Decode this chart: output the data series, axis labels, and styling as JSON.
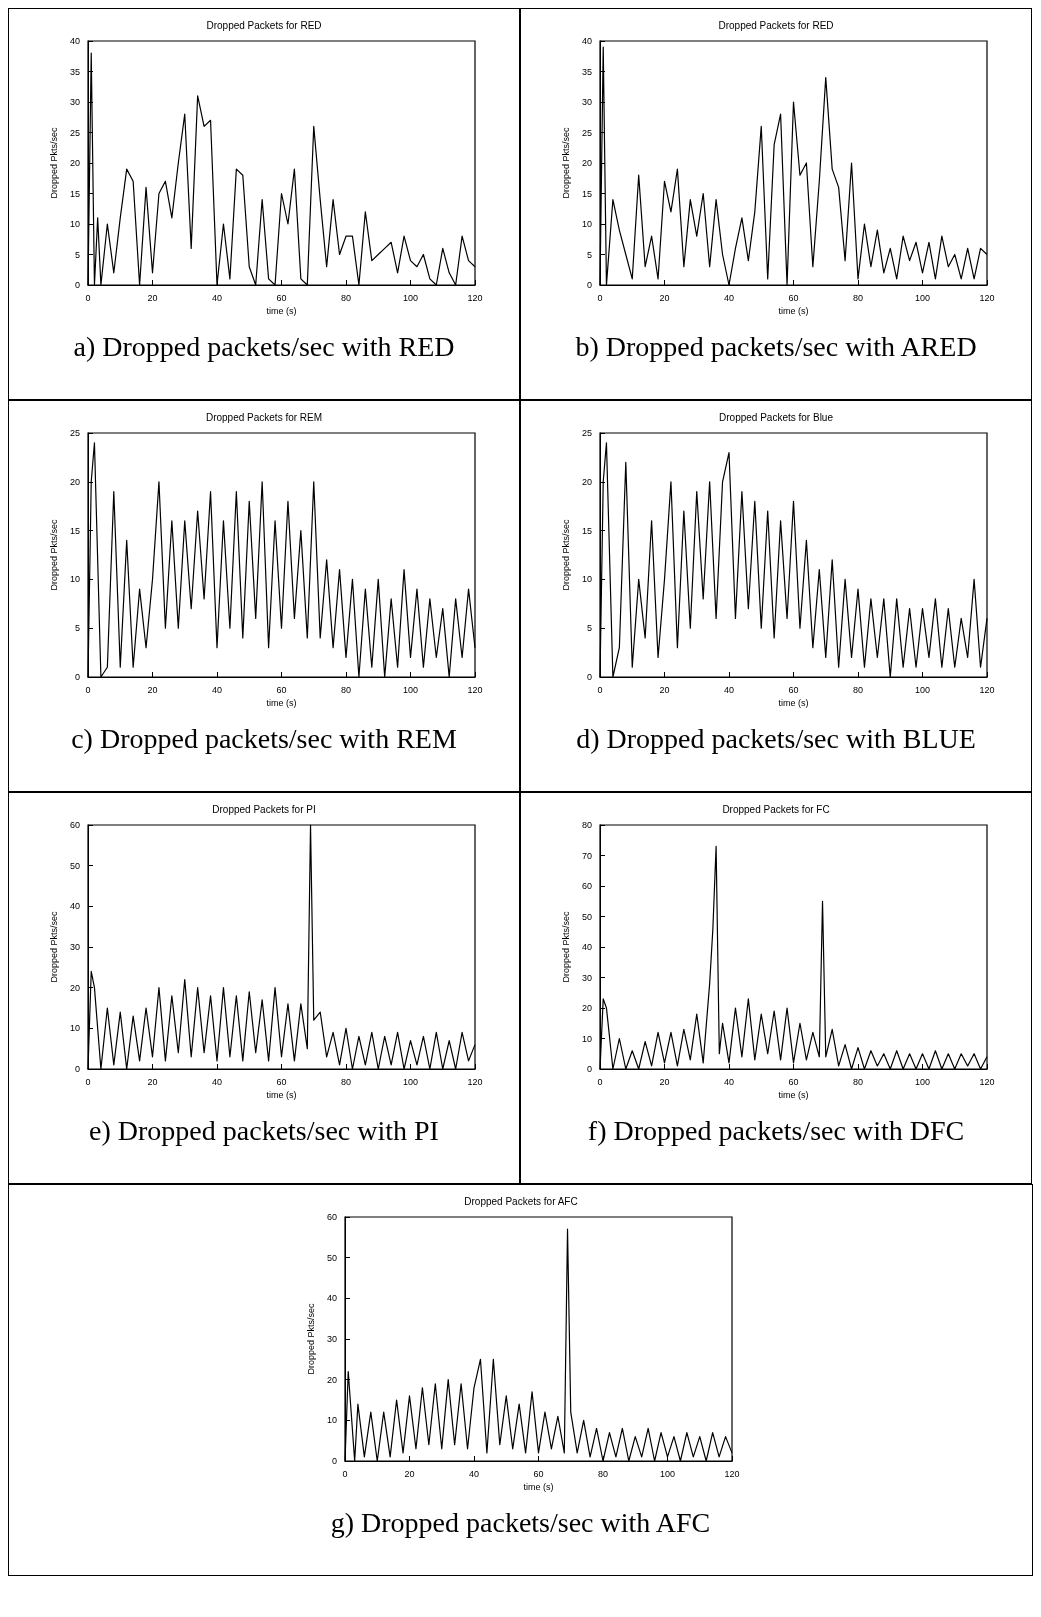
{
  "chart_data": [
    {
      "type": "line",
      "title": "Dropped Packets for RED",
      "xlabel": "time (s)",
      "ylabel": "Dropped Pkts/sec",
      "annotations": [
        "a) Dropped packets/sec with RED"
      ],
      "color": "#000000",
      "xlim": [
        0,
        120
      ],
      "xticks": [
        0,
        20,
        40,
        60,
        80,
        100,
        120
      ],
      "ylim": [
        0,
        40
      ],
      "yticks": [
        0,
        5,
        10,
        15,
        20,
        25,
        30,
        35,
        40
      ],
      "x": [
        0,
        1,
        2,
        3,
        4,
        6,
        8,
        10,
        12,
        14,
        16,
        18,
        20,
        22,
        24,
        26,
        28,
        30,
        32,
        34,
        36,
        38,
        40,
        42,
        44,
        46,
        48,
        50,
        52,
        54,
        56,
        58,
        60,
        62,
        64,
        66,
        68,
        70,
        72,
        74,
        76,
        78,
        80,
        82,
        84,
        86,
        88,
        90,
        92,
        94,
        96,
        98,
        100,
        102,
        104,
        106,
        108,
        110,
        112,
        114,
        116,
        118,
        120
      ],
      "values": [
        0,
        38,
        0,
        11,
        0,
        10,
        2,
        11,
        19,
        17,
        0,
        16,
        2,
        15,
        17,
        11,
        20,
        28,
        6,
        31,
        26,
        27,
        0,
        10,
        1,
        19,
        18,
        3,
        0,
        14,
        1,
        0,
        15,
        10,
        19,
        1,
        0,
        26,
        14,
        3,
        14,
        5,
        8,
        8,
        0,
        12,
        4,
        5,
        6,
        7,
        2,
        8,
        4,
        3,
        5,
        1,
        0,
        6,
        2,
        0,
        8,
        4,
        3
      ]
    },
    {
      "type": "line",
      "title": "Dropped Packets for RED",
      "xlabel": "time (s)",
      "ylabel": "Dropped Pkts/sec",
      "annotations": [
        "b) Dropped packets/sec with ARED"
      ],
      "color": "#000000",
      "xlim": [
        0,
        120
      ],
      "xticks": [
        0,
        20,
        40,
        60,
        80,
        100,
        120
      ],
      "ylim": [
        0,
        40
      ],
      "yticks": [
        0,
        5,
        10,
        15,
        20,
        25,
        30,
        35,
        40
      ],
      "x": [
        0,
        1,
        2,
        4,
        6,
        8,
        10,
        12,
        14,
        16,
        18,
        20,
        22,
        24,
        26,
        28,
        30,
        32,
        34,
        36,
        38,
        40,
        42,
        44,
        46,
        48,
        50,
        52,
        54,
        56,
        58,
        60,
        62,
        64,
        66,
        68,
        70,
        72,
        74,
        76,
        78,
        80,
        82,
        84,
        86,
        88,
        90,
        92,
        94,
        96,
        98,
        100,
        102,
        104,
        106,
        108,
        110,
        112,
        114,
        116,
        118,
        120
      ],
      "values": [
        0,
        39,
        0,
        14,
        9,
        5,
        1,
        18,
        3,
        8,
        1,
        17,
        12,
        19,
        3,
        14,
        8,
        15,
        3,
        14,
        5,
        0,
        6,
        11,
        4,
        12,
        26,
        1,
        23,
        28,
        0,
        30,
        18,
        20,
        3,
        17,
        34,
        19,
        16,
        4,
        20,
        1,
        10,
        3,
        9,
        2,
        6,
        1,
        8,
        4,
        7,
        2,
        7,
        1,
        8,
        3,
        5,
        1,
        6,
        1,
        6,
        5
      ]
    },
    {
      "type": "line",
      "title": "Dropped Packets for REM",
      "xlabel": "time (s)",
      "ylabel": "Dropped Pkts/sec",
      "annotations": [
        "c) Dropped packets/sec with REM"
      ],
      "color": "#000000",
      "xlim": [
        0,
        120
      ],
      "xticks": [
        0,
        20,
        40,
        60,
        80,
        100,
        120
      ],
      "ylim": [
        0,
        25
      ],
      "yticks": [
        0,
        5,
        10,
        15,
        20,
        25
      ],
      "x": [
        0,
        1,
        2,
        4,
        6,
        8,
        10,
        12,
        14,
        16,
        18,
        20,
        22,
        24,
        26,
        28,
        30,
        32,
        34,
        36,
        38,
        40,
        42,
        44,
        46,
        48,
        50,
        52,
        54,
        56,
        58,
        60,
        62,
        64,
        66,
        68,
        70,
        72,
        74,
        76,
        78,
        80,
        82,
        84,
        86,
        88,
        90,
        92,
        94,
        96,
        98,
        100,
        102,
        104,
        106,
        108,
        110,
        112,
        114,
        116,
        118,
        120
      ],
      "values": [
        0,
        20,
        24,
        0,
        1,
        19,
        1,
        14,
        1,
        9,
        3,
        10,
        20,
        5,
        16,
        5,
        16,
        7,
        17,
        8,
        19,
        3,
        16,
        5,
        19,
        4,
        18,
        6,
        20,
        3,
        16,
        5,
        18,
        6,
        15,
        4,
        20,
        4,
        12,
        3,
        11,
        2,
        10,
        0,
        9,
        1,
        10,
        0,
        8,
        1,
        11,
        2,
        9,
        1,
        8,
        2,
        7,
        0,
        8,
        2,
        9,
        3
      ]
    },
    {
      "type": "line",
      "title": "Dropped Packets for Blue",
      "xlabel": "time (s)",
      "ylabel": "Dropped Pkts/sec",
      "annotations": [
        "d) Dropped packets/sec with BLUE"
      ],
      "color": "#000000",
      "xlim": [
        0,
        120
      ],
      "xticks": [
        0,
        20,
        40,
        60,
        80,
        100,
        120
      ],
      "ylim": [
        0,
        25
      ],
      "yticks": [
        0,
        5,
        10,
        15,
        20,
        25
      ],
      "x": [
        0,
        1,
        2,
        4,
        6,
        8,
        10,
        12,
        14,
        16,
        18,
        20,
        22,
        24,
        26,
        28,
        30,
        32,
        34,
        36,
        38,
        40,
        42,
        44,
        46,
        48,
        50,
        52,
        54,
        56,
        58,
        60,
        62,
        64,
        66,
        68,
        70,
        72,
        74,
        76,
        78,
        80,
        82,
        84,
        86,
        88,
        90,
        92,
        94,
        96,
        98,
        100,
        102,
        104,
        106,
        108,
        110,
        112,
        114,
        116,
        118,
        120
      ],
      "values": [
        0,
        20,
        24,
        0,
        3,
        22,
        1,
        10,
        4,
        16,
        2,
        10,
        20,
        3,
        17,
        5,
        19,
        8,
        20,
        6,
        20,
        23,
        6,
        19,
        7,
        18,
        5,
        17,
        4,
        16,
        6,
        18,
        5,
        14,
        3,
        11,
        2,
        12,
        1,
        10,
        2,
        9,
        1,
        8,
        2,
        8,
        0,
        8,
        1,
        7,
        1,
        7,
        2,
        8,
        1,
        7,
        1,
        6,
        2,
        10,
        1,
        6
      ]
    },
    {
      "type": "line",
      "title": "Dropped Packets for PI",
      "xlabel": "time (s)",
      "ylabel": "Dropped Pkts/sec",
      "annotations": [
        "e) Dropped packets/sec with PI"
      ],
      "color": "#000000",
      "xlim": [
        0,
        120
      ],
      "xticks": [
        0,
        20,
        40,
        60,
        80,
        100,
        120
      ],
      "ylim": [
        0,
        60
      ],
      "yticks": [
        0,
        10,
        20,
        30,
        40,
        50,
        60
      ],
      "x": [
        0,
        1,
        2,
        4,
        6,
        8,
        10,
        12,
        14,
        16,
        18,
        20,
        22,
        24,
        26,
        28,
        30,
        32,
        34,
        36,
        38,
        40,
        42,
        44,
        46,
        48,
        50,
        52,
        54,
        56,
        58,
        60,
        62,
        64,
        66,
        68,
        69,
        70,
        72,
        74,
        76,
        78,
        80,
        82,
        84,
        86,
        88,
        90,
        92,
        94,
        96,
        98,
        100,
        102,
        104,
        106,
        108,
        110,
        112,
        114,
        116,
        118,
        120
      ],
      "values": [
        0,
        24,
        20,
        0,
        15,
        1,
        14,
        0,
        13,
        2,
        15,
        3,
        20,
        2,
        18,
        4,
        22,
        3,
        20,
        4,
        18,
        2,
        20,
        3,
        18,
        2,
        19,
        4,
        17,
        2,
        20,
        3,
        16,
        2,
        16,
        5,
        60,
        12,
        14,
        3,
        9,
        1,
        10,
        0,
        8,
        1,
        9,
        0,
        8,
        1,
        9,
        0,
        7,
        1,
        8,
        0,
        9,
        0,
        7,
        0,
        9,
        2,
        6
      ]
    },
    {
      "type": "line",
      "title": "Dropped Packets for FC",
      "xlabel": "time (s)",
      "ylabel": "Dropped Pkts/sec",
      "annotations": [
        "f) Dropped packets/sec with DFC"
      ],
      "color": "#000000",
      "xlim": [
        0,
        120
      ],
      "xticks": [
        0,
        20,
        40,
        60,
        80,
        100,
        120
      ],
      "ylim": [
        0,
        80
      ],
      "yticks": [
        0,
        10,
        20,
        30,
        40,
        50,
        60,
        70,
        80
      ],
      "x": [
        0,
        1,
        2,
        4,
        6,
        8,
        10,
        12,
        14,
        16,
        18,
        20,
        22,
        24,
        26,
        28,
        30,
        32,
        34,
        35,
        36,
        37,
        38,
        40,
        42,
        44,
        46,
        48,
        50,
        52,
        54,
        56,
        58,
        60,
        62,
        64,
        66,
        68,
        69,
        70,
        72,
        74,
        76,
        78,
        80,
        82,
        84,
        86,
        88,
        90,
        92,
        94,
        96,
        98,
        100,
        102,
        104,
        106,
        108,
        110,
        112,
        114,
        116,
        118,
        120
      ],
      "values": [
        0,
        23,
        20,
        0,
        10,
        0,
        6,
        0,
        9,
        1,
        12,
        2,
        12,
        1,
        13,
        3,
        18,
        2,
        28,
        46,
        73,
        5,
        15,
        2,
        20,
        4,
        23,
        3,
        18,
        5,
        19,
        3,
        20,
        2,
        15,
        3,
        12,
        4,
        55,
        4,
        13,
        1,
        8,
        0,
        7,
        0,
        6,
        1,
        5,
        0,
        6,
        0,
        5,
        0,
        5,
        0,
        6,
        0,
        5,
        0,
        5,
        1,
        5,
        0,
        4
      ]
    },
    {
      "type": "line",
      "title": "Dropped Packets for AFC",
      "xlabel": "time (s)",
      "ylabel": "Dropped Pkts/sec",
      "annotations": [
        "g) Dropped packets/sec with AFC"
      ],
      "color": "#000000",
      "xlim": [
        0,
        120
      ],
      "xticks": [
        0,
        20,
        40,
        60,
        80,
        100,
        120
      ],
      "ylim": [
        0,
        60
      ],
      "yticks": [
        0,
        10,
        20,
        30,
        40,
        50,
        60
      ],
      "x": [
        0,
        1,
        3,
        4,
        6,
        8,
        10,
        12,
        14,
        16,
        18,
        20,
        22,
        24,
        26,
        28,
        30,
        32,
        34,
        36,
        38,
        40,
        42,
        44,
        46,
        48,
        50,
        52,
        54,
        56,
        58,
        60,
        62,
        64,
        66,
        68,
        69,
        70,
        72,
        74,
        76,
        78,
        80,
        82,
        84,
        86,
        88,
        90,
        92,
        94,
        96,
        98,
        100,
        102,
        104,
        106,
        108,
        110,
        112,
        114,
        116,
        118,
        120
      ],
      "values": [
        0,
        22,
        0,
        14,
        1,
        12,
        0,
        12,
        1,
        15,
        2,
        16,
        3,
        18,
        4,
        19,
        3,
        20,
        4,
        19,
        3,
        18,
        25,
        2,
        25,
        4,
        16,
        3,
        14,
        2,
        17,
        2,
        12,
        3,
        11,
        2,
        57,
        12,
        2,
        10,
        1,
        8,
        0,
        7,
        1,
        8,
        0,
        6,
        1,
        8,
        0,
        7,
        1,
        6,
        0,
        7,
        1,
        6,
        0,
        7,
        1,
        6,
        2
      ]
    }
  ]
}
